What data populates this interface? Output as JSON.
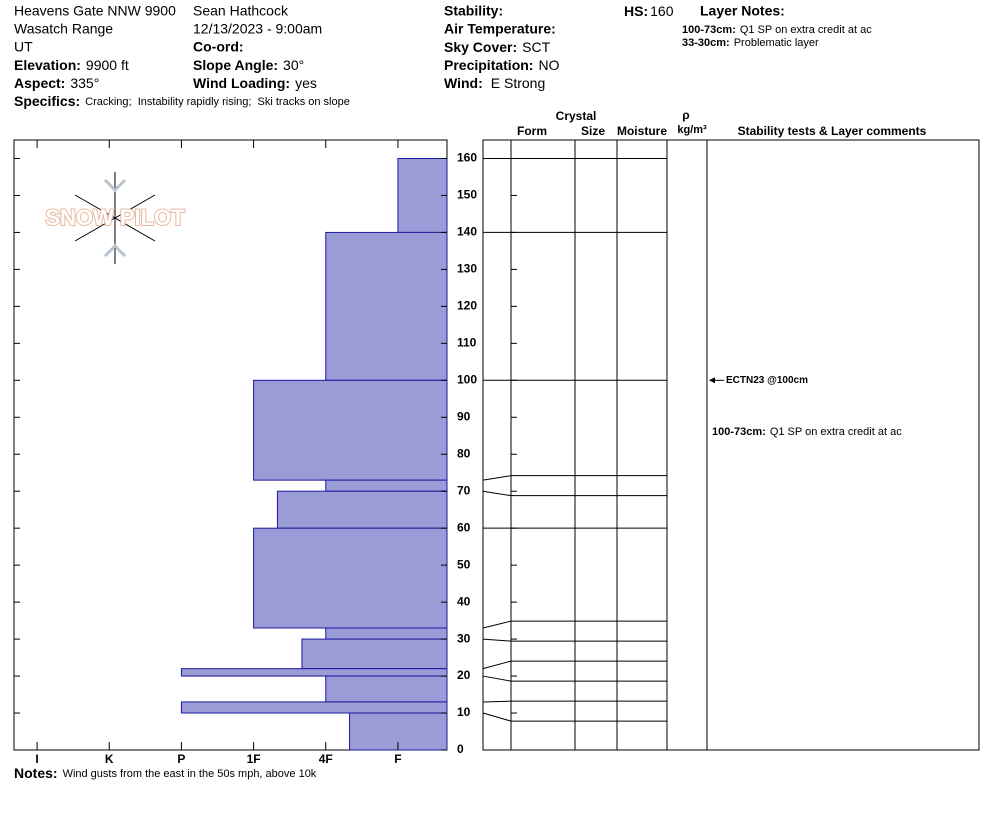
{
  "header": {
    "location": "Heavens Gate NNW 9900",
    "range": "Wasatch Range",
    "state": "UT",
    "elevation": {
      "label": "Elevation:",
      "value": "9900 ft"
    },
    "aspect": {
      "label": "Aspect:",
      "value": "335°"
    },
    "observer": "Sean Hathcock",
    "datetime": "12/13/2023 - 9:00am",
    "coord": {
      "label": "Co-ord:"
    },
    "slope_angle": {
      "label": "Slope Angle:",
      "value": "30°"
    },
    "wind_loading": {
      "label": "Wind Loading:",
      "value": "yes"
    },
    "stability": {
      "label": "Stability:"
    },
    "air_temperature": {
      "label": "Air Temperature:"
    },
    "sky_cover": {
      "label": "Sky Cover:",
      "value": "SCT"
    },
    "precipitation": {
      "label": "Precipitation:",
      "value": "NO"
    },
    "wind": {
      "label": "Wind:",
      "value": "E Strong"
    },
    "hs": {
      "label": "HS:",
      "value": 160
    },
    "layer_notes": {
      "label": "Layer Notes:",
      "items": [
        {
          "range": "100-73cm:",
          "text": "Q1 SP on extra credit at ac"
        },
        {
          "range": "33-30cm:",
          "text": "Problematic layer"
        }
      ]
    },
    "specifics": {
      "label": "Specifics:",
      "value": "Cracking;  Instability rapidly rising;  Ski tracks on slope"
    }
  },
  "logo": "SNOW PILOT",
  "chart_data": {
    "type": "snow-profile",
    "xlim": [
      6.32,
      0.32
    ],
    "xticks": [
      {
        "value": 6,
        "label": "I"
      },
      {
        "value": 5,
        "label": "K"
      },
      {
        "value": 4,
        "label": "P"
      },
      {
        "value": 3,
        "label": "1F"
      },
      {
        "value": 2,
        "label": "4F"
      },
      {
        "value": 1,
        "label": "F"
      }
    ],
    "ylim": [
      0,
      165
    ],
    "yticks": [
      0,
      10,
      20,
      30,
      40,
      50,
      60,
      70,
      80,
      90,
      100,
      110,
      120,
      130,
      140,
      150,
      160
    ],
    "layers": [
      {
        "top": 160,
        "bottom": 140,
        "hardness": 1
      },
      {
        "top": 140,
        "bottom": 100,
        "hardness": 2
      },
      {
        "top": 100,
        "bottom": 73,
        "hardness": 3
      },
      {
        "top": 73,
        "bottom": 70,
        "hardness": 2
      },
      {
        "top": 70,
        "bottom": 60,
        "hardness": 2.67
      },
      {
        "top": 60,
        "bottom": 33,
        "hardness": 3
      },
      {
        "top": 33,
        "bottom": 30,
        "hardness": 2
      },
      {
        "top": 30,
        "bottom": 22,
        "hardness": 2.33
      },
      {
        "top": 22,
        "bottom": 20,
        "hardness": 4
      },
      {
        "top": 20,
        "bottom": 13,
        "hardness": 2
      },
      {
        "top": 13,
        "bottom": 10,
        "hardness": 4
      },
      {
        "top": 10,
        "bottom": 0,
        "hardness": 1.67
      }
    ],
    "bar_color": "#9b9bd7",
    "edge_color": "#1a1a9c",
    "table_headers": {
      "crystal": "Crystal",
      "form": "Form",
      "size": "Size",
      "moisture": "Moisture",
      "rho": "ρ",
      "density_unit": "kg/m³",
      "comments": "Stability tests & Layer comments"
    },
    "tests": [
      {
        "depth": 100,
        "label": "ECTN23 @100cm"
      }
    ],
    "layer_comments": [
      {
        "range": "100-73cm:",
        "text": "Q1 SP on extra credit at ac"
      }
    ]
  },
  "notes": {
    "label": "Notes:",
    "value": "Wind gusts from the east in the 50s mph, above 10k"
  }
}
